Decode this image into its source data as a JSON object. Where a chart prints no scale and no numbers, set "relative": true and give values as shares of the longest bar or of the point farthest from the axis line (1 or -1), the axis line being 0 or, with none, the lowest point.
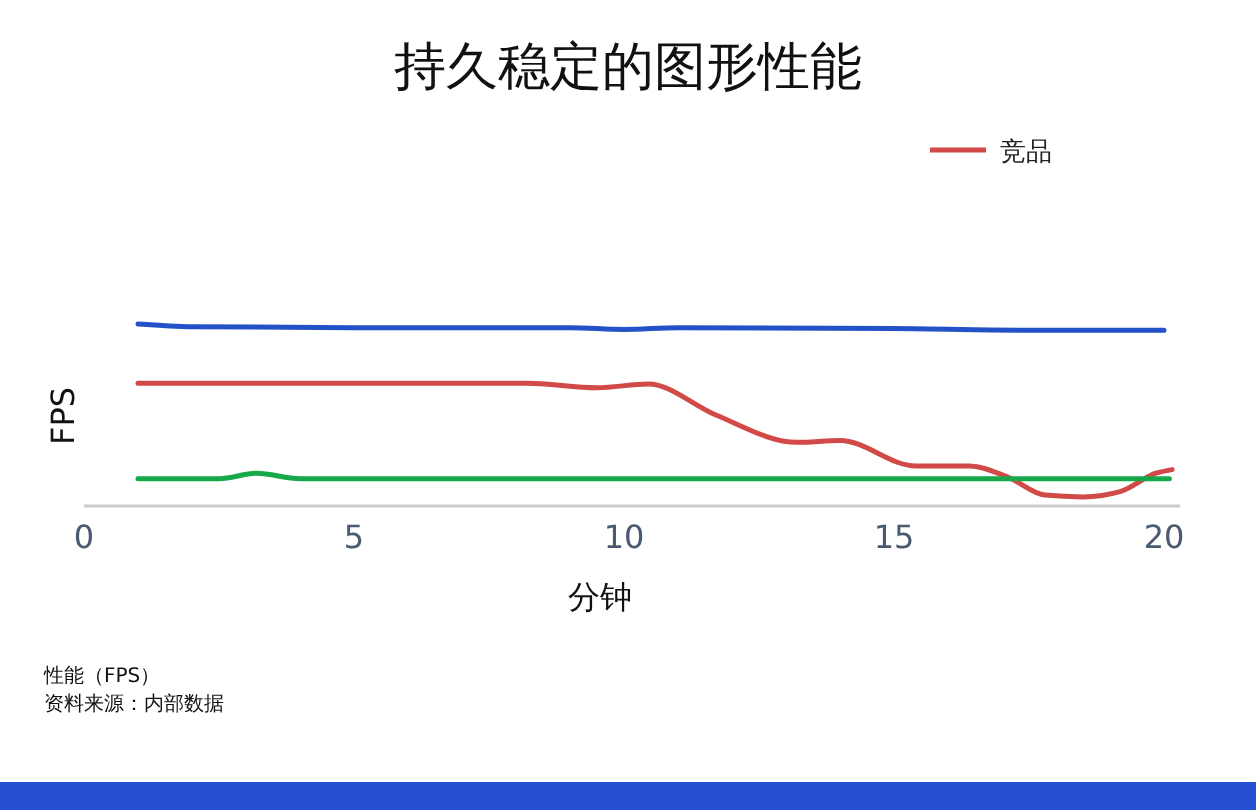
{
  "chart_data": {
    "type": "line",
    "title": "持久稳定的图形性能",
    "xlabel": "分钟",
    "ylabel": "FPS",
    "relative": true,
    "xlim": [
      0,
      20.3
    ],
    "xticks": [
      0,
      5,
      10,
      15,
      20
    ],
    "grid": false,
    "legend": "top right",
    "marker": "none",
    "line_style": "solid",
    "annotations": [
      "性能（FPS）",
      "资料来源：内部数据"
    ],
    "series": [
      {
        "color": "#2251c8",
        "x": [
          1,
          2,
          5,
          9,
          10,
          11,
          15,
          18,
          20
        ],
        "values": [
          1.0,
          0.985,
          0.98,
          0.98,
          0.97,
          0.98,
          0.975,
          0.965,
          0.965
        ]
      },
      {
        "name": "竞品",
        "color": "#d24a48",
        "x": [
          1,
          8.2,
          9.5,
          10.45,
          11.7,
          13.2,
          14,
          15.4,
          16.4,
          17.1,
          17.8,
          18.5,
          19.2,
          19.85,
          20.15
        ],
        "values": [
          0.675,
          0.675,
          0.65,
          0.67,
          0.5,
          0.35,
          0.36,
          0.22,
          0.22,
          0.16,
          0.06,
          0.05,
          0.08,
          0.18,
          0.2
        ]
      },
      {
        "color": "#17a84a",
        "x": [
          1,
          2.5,
          3.2,
          4,
          20.1
        ],
        "values": [
          0.15,
          0.15,
          0.18,
          0.15,
          0.15
        ]
      }
    ]
  }
}
